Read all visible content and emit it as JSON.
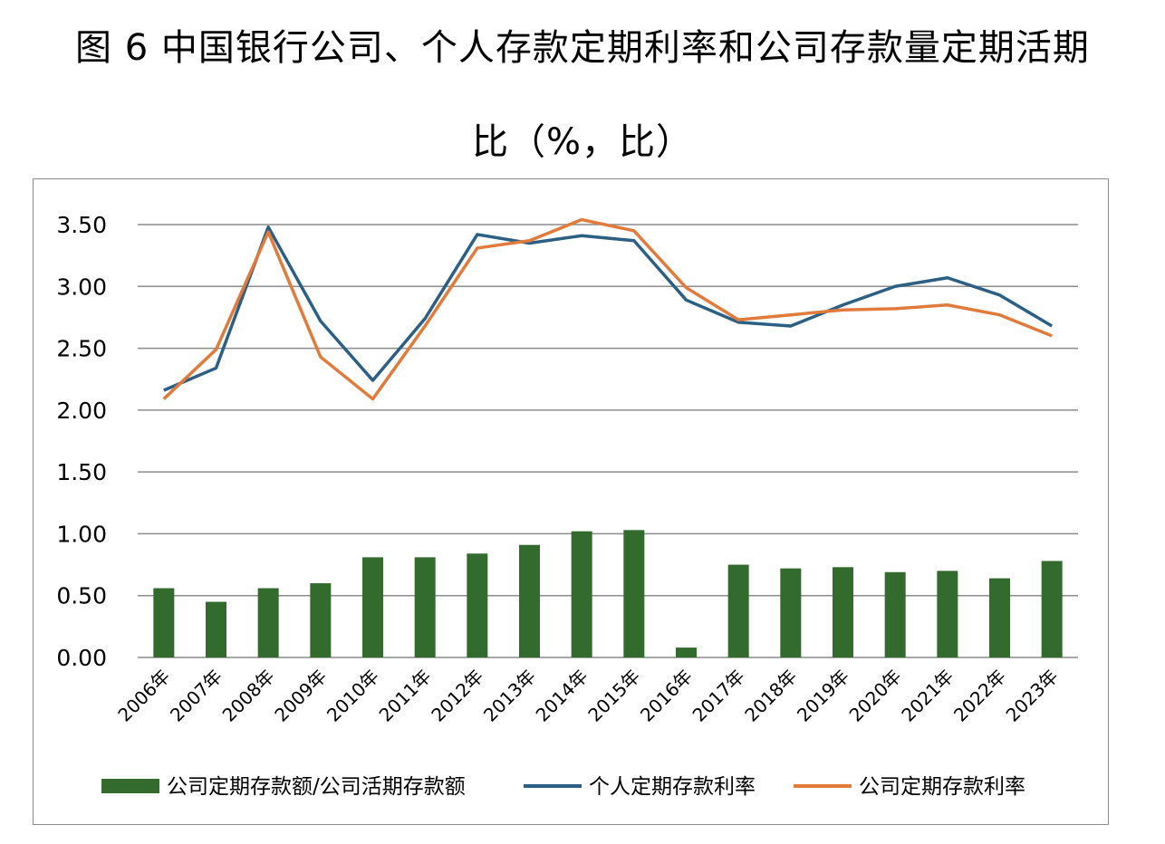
{
  "chart_data": {
    "type": "bar+line",
    "title_line1": "图 6  中国银行公司、个人存款定期利率和公司存款量定期活期",
    "title_line2": "比（%，比）",
    "categories": [
      "2006年",
      "2007年",
      "2008年",
      "2009年",
      "2010年",
      "2011年",
      "2012年",
      "2013年",
      "2014年",
      "2015年",
      "2016年",
      "2017年",
      "2018年",
      "2019年",
      "2020年",
      "2021年",
      "2022年",
      "2023年"
    ],
    "ylim": [
      0,
      3.5
    ],
    "yticks": [
      "0.00",
      "0.50",
      "1.00",
      "1.50",
      "2.00",
      "2.50",
      "3.00",
      "3.50"
    ],
    "grid": true,
    "legend_position": "bottom",
    "series": [
      {
        "name": "公司定期存款额/公司活期存款额",
        "kind": "bar",
        "color": "#336a2d",
        "values": [
          0.56,
          0.45,
          0.56,
          0.6,
          0.81,
          0.81,
          0.84,
          0.91,
          1.02,
          1.03,
          0.08,
          0.75,
          0.72,
          0.73,
          0.69,
          0.7,
          0.64,
          0.78
        ]
      },
      {
        "name": "个人定期存款利率",
        "kind": "line",
        "color": "#2c5f84",
        "values": [
          2.16,
          2.34,
          3.48,
          2.72,
          2.24,
          2.74,
          3.42,
          3.35,
          3.41,
          3.37,
          2.89,
          2.71,
          2.68,
          2.85,
          3.0,
          3.07,
          2.93,
          2.68
        ]
      },
      {
        "name": "公司定期存款利率",
        "kind": "line",
        "color": "#e07b3c",
        "values": [
          2.09,
          2.49,
          3.44,
          2.43,
          2.09,
          2.68,
          3.31,
          3.37,
          3.54,
          3.45,
          2.99,
          2.73,
          2.77,
          2.81,
          2.82,
          2.85,
          2.77,
          2.6
        ]
      }
    ]
  }
}
